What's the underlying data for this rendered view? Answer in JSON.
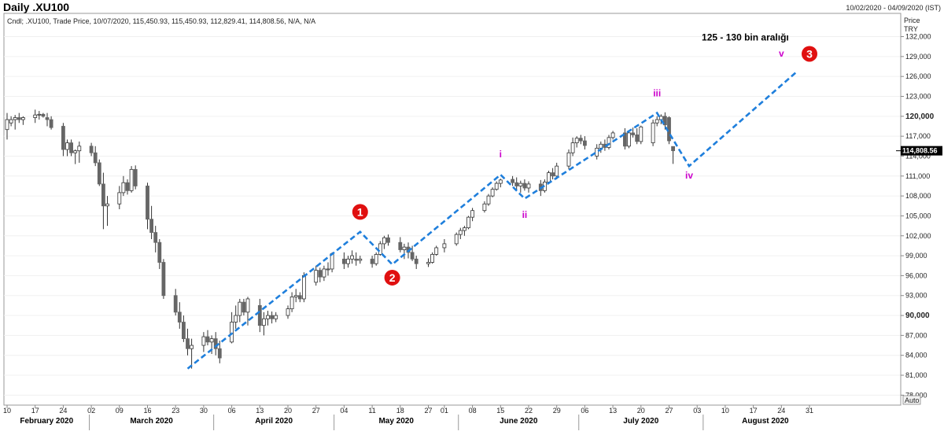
{
  "header": {
    "title": "Daily .XU100",
    "date_range": "10/02/2020 - 04/09/2020 (IST)"
  },
  "legend_line": "Cndl; .XU100, Trade Price, 10/07/2020, 115,450.93, 115,450.93, 112,829.41, 114,808.56, N/A, N/A",
  "price_axis": {
    "label_line1": "Price",
    "label_line2": "TRY",
    "current_price_label": "114,808.56",
    "auto_label": "Auto"
  },
  "colors": {
    "bull": "#ffffff",
    "bear": "#666666",
    "wick": "#333333",
    "wave_line": "#1f7fdc",
    "wave_label": "#cc00cc",
    "marker": "#e01010"
  },
  "chart_data": {
    "type": "candlestick",
    "ylim": [
      76500,
      135500
    ],
    "yticks": [
      {
        "value": 78000,
        "label": "78,000"
      },
      {
        "value": 81000,
        "label": "81,000"
      },
      {
        "value": 84000,
        "label": "84,000"
      },
      {
        "value": 87000,
        "label": "87,000"
      },
      {
        "value": 90000,
        "label": "90,000",
        "bold": true
      },
      {
        "value": 93000,
        "label": "93,000"
      },
      {
        "value": 96000,
        "label": "96,000"
      },
      {
        "value": 99000,
        "label": "99,000"
      },
      {
        "value": 102000,
        "label": "102,000"
      },
      {
        "value": 105000,
        "label": "105,000"
      },
      {
        "value": 108000,
        "label": "108,000"
      },
      {
        "value": 111000,
        "label": "111,000"
      },
      {
        "value": 114000,
        "label": "114,000"
      },
      {
        "value": 117000,
        "label": "117,000"
      },
      {
        "value": 120000,
        "label": "120,000",
        "bold": true
      },
      {
        "value": 123000,
        "label": "123,000"
      },
      {
        "value": 126000,
        "label": "126,000"
      },
      {
        "value": 129000,
        "label": "129,000"
      },
      {
        "value": 132000,
        "label": "132,000"
      }
    ],
    "day_ticks": [
      {
        "day": 0,
        "label": "10"
      },
      {
        "day": 7,
        "label": "17"
      },
      {
        "day": 14,
        "label": "24"
      },
      {
        "day": 21,
        "label": "02"
      },
      {
        "day": 28,
        "label": "09"
      },
      {
        "day": 35,
        "label": "16"
      },
      {
        "day": 42,
        "label": "23"
      },
      {
        "day": 49,
        "label": "30"
      },
      {
        "day": 56,
        "label": "06"
      },
      {
        "day": 63,
        "label": "13"
      },
      {
        "day": 70,
        "label": "20"
      },
      {
        "day": 77,
        "label": "27"
      },
      {
        "day": 84,
        "label": "04"
      },
      {
        "day": 91,
        "label": "11"
      },
      {
        "day": 98,
        "label": "18"
      },
      {
        "day": 105,
        "label": "27"
      },
      {
        "day": 109,
        "label": "01"
      },
      {
        "day": 116,
        "label": "08"
      },
      {
        "day": 123,
        "label": "15"
      },
      {
        "day": 130,
        "label": "22"
      },
      {
        "day": 137,
        "label": "29"
      },
      {
        "day": 144,
        "label": "06"
      },
      {
        "day": 151,
        "label": "13"
      },
      {
        "day": 158,
        "label": "20"
      },
      {
        "day": 165,
        "label": "27"
      },
      {
        "day": 172,
        "label": "03"
      },
      {
        "day": 179,
        "label": "10"
      },
      {
        "day": 186,
        "label": "17"
      },
      {
        "day": 193,
        "label": "24"
      },
      {
        "day": 200,
        "label": "31"
      }
    ],
    "months": [
      {
        "label": "February 2020",
        "start": -2,
        "end": 20.5
      },
      {
        "label": "March 2020",
        "start": 20.5,
        "end": 51.5
      },
      {
        "label": "April 2020",
        "start": 51.5,
        "end": 81.5
      },
      {
        "label": "May 2020",
        "start": 81.5,
        "end": 112.5
      },
      {
        "label": "June 2020",
        "start": 112.5,
        "end": 142.5
      },
      {
        "label": "July 2020",
        "start": 142.5,
        "end": 173.5
      },
      {
        "label": "August 2020",
        "start": 173.5,
        "end": 204.5
      }
    ],
    "candles": [
      {
        "d": 0,
        "o": 118000,
        "h": 120500,
        "l": 116500,
        "c": 119500
      },
      {
        "d": 1,
        "o": 119000,
        "h": 120000,
        "l": 118500,
        "c": 119500
      },
      {
        "d": 2,
        "o": 119500,
        "h": 120200,
        "l": 118000,
        "c": 119800
      },
      {
        "d": 3,
        "o": 119800,
        "h": 120500,
        "l": 119000,
        "c": 119500
      },
      {
        "d": 4,
        "o": 119500,
        "h": 120000,
        "l": 118700,
        "c": 119800
      },
      {
        "d": 7,
        "o": 119800,
        "h": 121000,
        "l": 119000,
        "c": 120200
      },
      {
        "d": 8,
        "o": 120200,
        "h": 120800,
        "l": 119500,
        "c": 120300
      },
      {
        "d": 9,
        "o": 120300,
        "h": 120500,
        "l": 119800,
        "c": 120000
      },
      {
        "d": 10,
        "o": 119800,
        "h": 120500,
        "l": 118500,
        "c": 119500
      },
      {
        "d": 11,
        "o": 119500,
        "h": 120000,
        "l": 118000,
        "c": 118300
      },
      {
        "d": 14,
        "o": 118500,
        "h": 119000,
        "l": 114000,
        "c": 115000
      },
      {
        "d": 15,
        "o": 115000,
        "h": 116500,
        "l": 114000,
        "c": 116000
      },
      {
        "d": 16,
        "o": 116000,
        "h": 116500,
        "l": 114000,
        "c": 114500
      },
      {
        "d": 17,
        "o": 114500,
        "h": 115000,
        "l": 112800,
        "c": 114800
      },
      {
        "d": 18,
        "o": 114800,
        "h": 116200,
        "l": 113000,
        "c": 115500
      },
      {
        "d": 21,
        "o": 115500,
        "h": 116000,
        "l": 114000,
        "c": 114500
      },
      {
        "d": 22,
        "o": 114500,
        "h": 115500,
        "l": 112500,
        "c": 113000
      },
      {
        "d": 23,
        "o": 113000,
        "h": 113500,
        "l": 109500,
        "c": 109800
      },
      {
        "d": 24,
        "o": 109800,
        "h": 111500,
        "l": 103000,
        "c": 106500
      },
      {
        "d": 25,
        "o": 106500,
        "h": 108000,
        "l": 103500,
        "c": 106800
      },
      {
        "d": 28,
        "o": 106800,
        "h": 109500,
        "l": 106000,
        "c": 108500
      },
      {
        "d": 29,
        "o": 108500,
        "h": 111000,
        "l": 108000,
        "c": 110000
      },
      {
        "d": 30,
        "o": 110000,
        "h": 110500,
        "l": 108200,
        "c": 108800
      },
      {
        "d": 31,
        "o": 108800,
        "h": 112500,
        "l": 108500,
        "c": 112000
      },
      {
        "d": 32,
        "o": 112000,
        "h": 112600,
        "l": 109000,
        "c": 109500
      },
      {
        "d": 35,
        "o": 109500,
        "h": 110000,
        "l": 103000,
        "c": 104500
      },
      {
        "d": 36,
        "o": 104500,
        "h": 106500,
        "l": 101500,
        "c": 102500
      },
      {
        "d": 37,
        "o": 102500,
        "h": 103500,
        "l": 99500,
        "c": 101000
      },
      {
        "d": 38,
        "o": 101000,
        "h": 101500,
        "l": 97000,
        "c": 98000
      },
      {
        "d": 39,
        "o": 98000,
        "h": 98500,
        "l": 92500,
        "c": 93000
      },
      {
        "d": 42,
        "o": 93000,
        "h": 94000,
        "l": 90000,
        "c": 90500
      },
      {
        "d": 43,
        "o": 90500,
        "h": 92000,
        "l": 88000,
        "c": 89000
      },
      {
        "d": 44,
        "o": 89000,
        "h": 90000,
        "l": 86000,
        "c": 86500
      },
      {
        "d": 45,
        "o": 86500,
        "h": 88000,
        "l": 84000,
        "c": 85000
      },
      {
        "d": 46,
        "o": 85000,
        "h": 86500,
        "l": 82000,
        "c": 85500
      },
      {
        "d": 49,
        "o": 85500,
        "h": 87500,
        "l": 84500,
        "c": 86800
      },
      {
        "d": 50,
        "o": 86800,
        "h": 87800,
        "l": 85500,
        "c": 86000
      },
      {
        "d": 51,
        "o": 86000,
        "h": 87000,
        "l": 84200,
        "c": 86500
      },
      {
        "d": 52,
        "o": 86500,
        "h": 87500,
        "l": 84000,
        "c": 85000
      },
      {
        "d": 53,
        "o": 85000,
        "h": 86200,
        "l": 82800,
        "c": 83600
      },
      {
        "d": 56,
        "o": 86000,
        "h": 90500,
        "l": 85800,
        "c": 89000
      },
      {
        "d": 57,
        "o": 89000,
        "h": 91500,
        "l": 88000,
        "c": 90000
      },
      {
        "d": 58,
        "o": 90000,
        "h": 92500,
        "l": 89000,
        "c": 92000
      },
      {
        "d": 59,
        "o": 92000,
        "h": 92500,
        "l": 90000,
        "c": 90500
      },
      {
        "d": 60,
        "o": 90500,
        "h": 92800,
        "l": 88500,
        "c": 92500
      },
      {
        "d": 63,
        "o": 91500,
        "h": 92500,
        "l": 87500,
        "c": 88500
      },
      {
        "d": 64,
        "o": 88500,
        "h": 90500,
        "l": 87000,
        "c": 89500
      },
      {
        "d": 65,
        "o": 89500,
        "h": 90700,
        "l": 88500,
        "c": 90000
      },
      {
        "d": 66,
        "o": 90000,
        "h": 90600,
        "l": 88800,
        "c": 89500
      },
      {
        "d": 67,
        "o": 89500,
        "h": 90500,
        "l": 89000,
        "c": 90000
      },
      {
        "d": 70,
        "o": 90000,
        "h": 91500,
        "l": 89500,
        "c": 91000
      },
      {
        "d": 71,
        "o": 91000,
        "h": 93500,
        "l": 90500,
        "c": 92800
      },
      {
        "d": 72,
        "o": 92800,
        "h": 94000,
        "l": 92000,
        "c": 93000
      },
      {
        "d": 73,
        "o": 93000,
        "h": 93500,
        "l": 92000,
        "c": 92500
      },
      {
        "d": 74,
        "o": 92500,
        "h": 96500,
        "l": 92000,
        "c": 96000
      },
      {
        "d": 77,
        "o": 95000,
        "h": 97500,
        "l": 94500,
        "c": 96800
      },
      {
        "d": 78,
        "o": 96800,
        "h": 97200,
        "l": 95000,
        "c": 95800
      },
      {
        "d": 79,
        "o": 95800,
        "h": 97500,
        "l": 95200,
        "c": 97000
      },
      {
        "d": 80,
        "o": 97000,
        "h": 98000,
        "l": 96000,
        "c": 97000
      },
      {
        "d": 81,
        "o": 97000,
        "h": 99500,
        "l": 96500,
        "c": 99300
      },
      {
        "d": 84,
        "o": 98500,
        "h": 99500,
        "l": 97000,
        "c": 97800
      },
      {
        "d": 85,
        "o": 97800,
        "h": 99000,
        "l": 97200,
        "c": 98500
      },
      {
        "d": 86,
        "o": 98500,
        "h": 99800,
        "l": 97800,
        "c": 99000
      },
      {
        "d": 87,
        "o": 98500,
        "h": 99500,
        "l": 97500,
        "c": 98300
      },
      {
        "d": 88,
        "o": 98300,
        "h": 99000,
        "l": 97800,
        "c": 98500
      },
      {
        "d": 91,
        "o": 98500,
        "h": 99000,
        "l": 97200,
        "c": 97800
      },
      {
        "d": 92,
        "o": 97800,
        "h": 99500,
        "l": 97500,
        "c": 99200
      },
      {
        "d": 93,
        "o": 99200,
        "h": 101200,
        "l": 99000,
        "c": 100800
      },
      {
        "d": 94,
        "o": 100800,
        "h": 102000,
        "l": 100000,
        "c": 101700
      },
      {
        "d": 95,
        "o": 101700,
        "h": 102200,
        "l": 100500,
        "c": 101000
      },
      {
        "d": 98,
        "o": 101000,
        "h": 101800,
        "l": 99500,
        "c": 99900
      },
      {
        "d": 99,
        "o": 99900,
        "h": 100800,
        "l": 98500,
        "c": 100300
      },
      {
        "d": 100,
        "o": 100300,
        "h": 101000,
        "l": 98600,
        "c": 99500
      },
      {
        "d": 101,
        "o": 99500,
        "h": 100500,
        "l": 98200,
        "c": 98500
      },
      {
        "d": 102,
        "o": 98500,
        "h": 99000,
        "l": 97000,
        "c": 97800
      },
      {
        "d": 105,
        "o": 97800,
        "h": 98600,
        "l": 97300,
        "c": 98000
      },
      {
        "d": 106,
        "o": 98000,
        "h": 99500,
        "l": 97800,
        "c": 99200
      },
      {
        "d": 107,
        "o": 99200,
        "h": 100500,
        "l": 99000,
        "c": 100200
      },
      {
        "d": 109,
        "o": 100200,
        "h": 101500,
        "l": 99500,
        "c": 100800
      },
      {
        "d": 112,
        "o": 100800,
        "h": 102500,
        "l": 100500,
        "c": 102200
      },
      {
        "d": 113,
        "o": 102200,
        "h": 103200,
        "l": 101500,
        "c": 102800
      },
      {
        "d": 114,
        "o": 102800,
        "h": 103500,
        "l": 102000,
        "c": 103200
      },
      {
        "d": 115,
        "o": 103200,
        "h": 105000,
        "l": 103000,
        "c": 104800
      },
      {
        "d": 116,
        "o": 104800,
        "h": 106200,
        "l": 104200,
        "c": 105800
      },
      {
        "d": 119,
        "o": 105800,
        "h": 107200,
        "l": 105500,
        "c": 106800
      },
      {
        "d": 120,
        "o": 106800,
        "h": 108300,
        "l": 106500,
        "c": 108000
      },
      {
        "d": 121,
        "o": 108000,
        "h": 109300,
        "l": 107800,
        "c": 109000
      },
      {
        "d": 122,
        "o": 109000,
        "h": 110200,
        "l": 108800,
        "c": 109900
      },
      {
        "d": 123,
        "o": 109900,
        "h": 110600,
        "l": 109300,
        "c": 110400
      },
      {
        "d": 126,
        "o": 110500,
        "h": 111000,
        "l": 109500,
        "c": 110000
      },
      {
        "d": 127,
        "o": 110000,
        "h": 110800,
        "l": 108800,
        "c": 109500
      },
      {
        "d": 128,
        "o": 109500,
        "h": 110300,
        "l": 108500,
        "c": 109900
      },
      {
        "d": 129,
        "o": 109900,
        "h": 110500,
        "l": 108800,
        "c": 109200
      },
      {
        "d": 130,
        "o": 109200,
        "h": 110200,
        "l": 108500,
        "c": 109800
      },
      {
        "d": 133,
        "o": 109800,
        "h": 110400,
        "l": 108000,
        "c": 108800
      },
      {
        "d": 134,
        "o": 108800,
        "h": 110500,
        "l": 108500,
        "c": 110100
      },
      {
        "d": 135,
        "o": 110100,
        "h": 111800,
        "l": 109800,
        "c": 111500
      },
      {
        "d": 136,
        "o": 111500,
        "h": 112200,
        "l": 110500,
        "c": 111000
      },
      {
        "d": 137,
        "o": 111000,
        "h": 113000,
        "l": 110500,
        "c": 112500
      },
      {
        "d": 140,
        "o": 112500,
        "h": 115000,
        "l": 112000,
        "c": 114500
      },
      {
        "d": 141,
        "o": 114500,
        "h": 116800,
        "l": 114000,
        "c": 116000
      },
      {
        "d": 142,
        "o": 116000,
        "h": 117000,
        "l": 115300,
        "c": 116700
      },
      {
        "d": 143,
        "o": 116700,
        "h": 117200,
        "l": 115800,
        "c": 116300
      },
      {
        "d": 144,
        "o": 116300,
        "h": 117000,
        "l": 115000,
        "c": 115600
      },
      {
        "d": 147,
        "o": 114000,
        "h": 115800,
        "l": 113500,
        "c": 115200
      },
      {
        "d": 148,
        "o": 115200,
        "h": 116200,
        "l": 114500,
        "c": 115800
      },
      {
        "d": 149,
        "o": 115800,
        "h": 116500,
        "l": 114800,
        "c": 115300
      },
      {
        "d": 150,
        "o": 115300,
        "h": 117200,
        "l": 115000,
        "c": 116800
      },
      {
        "d": 151,
        "o": 116800,
        "h": 117800,
        "l": 116500,
        "c": 117500
      },
      {
        "d": 154,
        "o": 117500,
        "h": 118200,
        "l": 115000,
        "c": 115500
      },
      {
        "d": 155,
        "o": 115500,
        "h": 117800,
        "l": 115200,
        "c": 117500
      },
      {
        "d": 156,
        "o": 117500,
        "h": 118300,
        "l": 116800,
        "c": 117200
      },
      {
        "d": 157,
        "o": 117200,
        "h": 118200,
        "l": 115800,
        "c": 116200
      },
      {
        "d": 158,
        "o": 116200,
        "h": 118600,
        "l": 115800,
        "c": 118400
      },
      {
        "d": 161,
        "o": 116000,
        "h": 119500,
        "l": 115500,
        "c": 119000
      },
      {
        "d": 162,
        "o": 119000,
        "h": 120000,
        "l": 118500,
        "c": 119500
      },
      {
        "d": 163,
        "o": 119500,
        "h": 120300,
        "l": 118800,
        "c": 120000
      },
      {
        "d": 164,
        "o": 120000,
        "h": 120600,
        "l": 118000,
        "c": 118700
      },
      {
        "d": 165,
        "o": 119800,
        "h": 120000,
        "l": 115800,
        "c": 116300
      },
      {
        "d": 166,
        "o": 115450.93,
        "h": 115450.93,
        "l": 112829.41,
        "c": 114808.56
      }
    ],
    "wave_path": [
      {
        "d": 45,
        "v": 82000
      },
      {
        "d": 88,
        "v": 102600
      },
      {
        "d": 96,
        "v": 97700
      },
      {
        "d": 123,
        "v": 111200
      },
      {
        "d": 129,
        "v": 107600
      },
      {
        "d": 162,
        "v": 120500
      },
      {
        "d": 170,
        "v": 112500
      },
      {
        "d": 197,
        "v": 126800
      }
    ],
    "wave_labels": [
      {
        "label": "i",
        "d": 123,
        "v": 113800
      },
      {
        "label": "ii",
        "d": 129,
        "v": 104700
      },
      {
        "label": "iii",
        "d": 162,
        "v": 123000
      },
      {
        "label": "iv",
        "d": 170,
        "v": 110600
      },
      {
        "label": "v",
        "d": 193,
        "v": 129000
      }
    ],
    "markers": [
      {
        "label": "1",
        "d": 88,
        "v": 105600
      },
      {
        "label": "2",
        "d": 96,
        "v": 95700
      },
      {
        "label": "3",
        "d": 200,
        "v": 129400
      }
    ],
    "annotation": {
      "text": "125 - 130 bin aralığı",
      "d": 184,
      "v": 131400
    }
  }
}
